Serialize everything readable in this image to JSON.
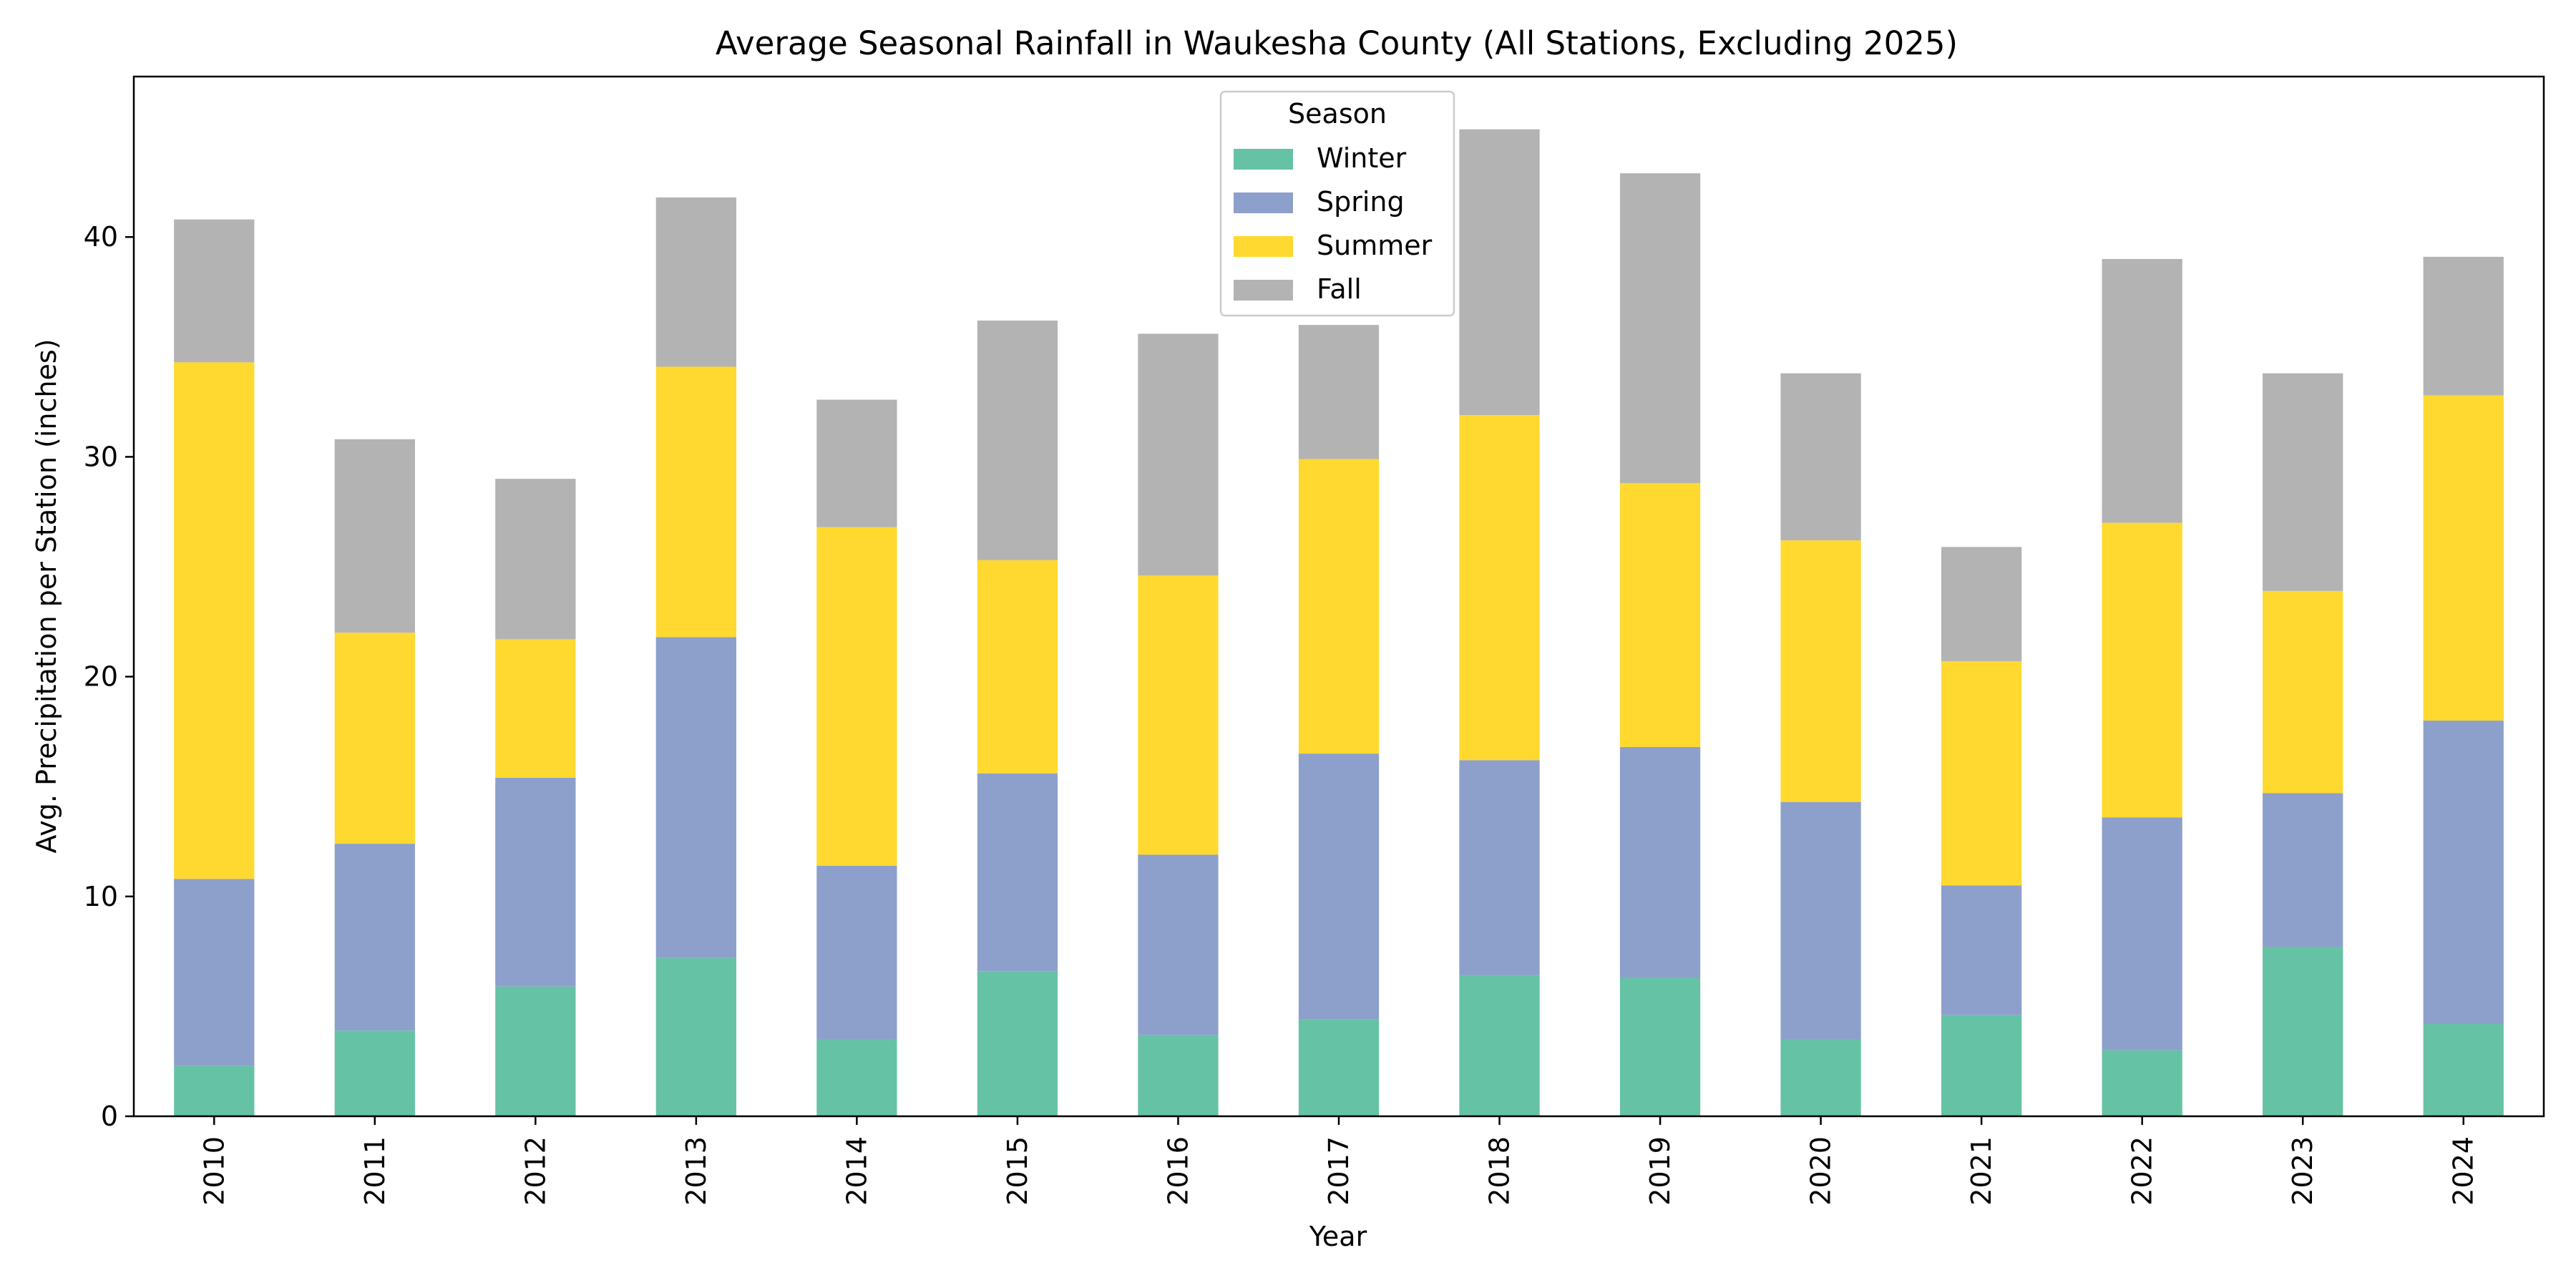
{
  "chart_data": {
    "type": "bar",
    "stacked": true,
    "title": "Average Seasonal Rainfall in Waukesha County (All Stations, Excluding 2025)",
    "xlabel": "Year",
    "ylabel": "Avg. Precipitation per Station (inches)",
    "categories": [
      "2010",
      "2011",
      "2012",
      "2013",
      "2014",
      "2015",
      "2016",
      "2017",
      "2018",
      "2019",
      "2020",
      "2021",
      "2022",
      "2023",
      "2024"
    ],
    "ylim": [
      0,
      47.3
    ],
    "yticks": [
      0,
      10,
      20,
      30,
      40
    ],
    "legend": {
      "title": "Season",
      "placement": "upper center"
    },
    "grid": false,
    "series": [
      {
        "name": "Winter",
        "color": "#66c2a5",
        "values": [
          2.3,
          3.9,
          5.9,
          7.2,
          3.5,
          6.6,
          3.7,
          4.4,
          6.4,
          6.3,
          3.5,
          4.6,
          3.0,
          7.7,
          4.2
        ]
      },
      {
        "name": "Spring",
        "color": "#8da0cb",
        "values": [
          8.5,
          8.5,
          9.5,
          14.6,
          7.9,
          9.0,
          8.2,
          12.1,
          9.8,
          10.5,
          10.8,
          5.9,
          10.6,
          7.0,
          13.8
        ]
      },
      {
        "name": "Summer",
        "color": "#ffd92f",
        "values": [
          23.5,
          9.6,
          6.3,
          12.3,
          15.4,
          9.7,
          12.7,
          13.4,
          15.7,
          12.0,
          11.9,
          10.2,
          13.4,
          9.2,
          14.8
        ]
      },
      {
        "name": "Fall",
        "color": "#b3b3b3",
        "values": [
          6.5,
          8.8,
          7.3,
          7.7,
          5.8,
          10.9,
          11.0,
          6.1,
          13.0,
          14.1,
          7.6,
          5.2,
          12.0,
          9.9,
          6.3
        ]
      }
    ]
  }
}
